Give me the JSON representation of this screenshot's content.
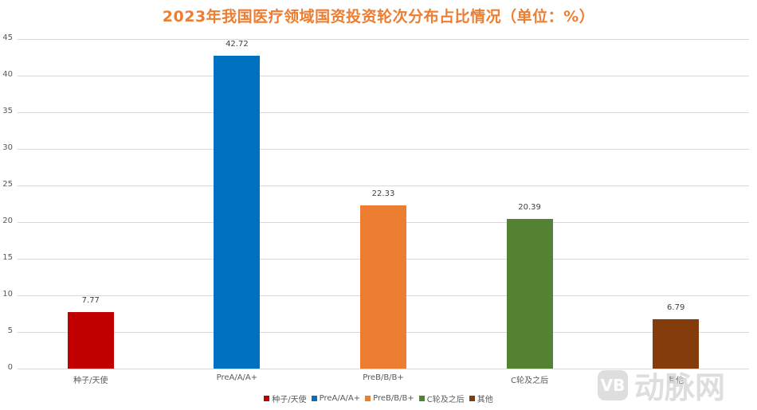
{
  "chart_data": {
    "type": "bar",
    "title": "2023年我国医疗领域国资投资轮次分布占比情况（单位：%）",
    "categories": [
      "种子/天使",
      "PreA/A/A+",
      "PreB/B/B+",
      "C轮及之后",
      "其他"
    ],
    "values": [
      7.77,
      42.72,
      22.33,
      20.39,
      6.79
    ],
    "value_labels": [
      "7.77",
      "42.72",
      "22.33",
      "20.39",
      "6.79"
    ],
    "colors": [
      "#C00000",
      "#0070C0",
      "#ED7D31",
      "#548235",
      "#843C0C"
    ],
    "xlabel": "",
    "ylabel": "",
    "ylim": [
      0,
      45
    ],
    "yticks": [
      "0",
      "5",
      "10",
      "15",
      "20",
      "25",
      "30",
      "35",
      "40",
      "45"
    ],
    "grid": true,
    "legend_position": "bottom",
    "legend": [
      "种子/天使",
      "PreA/A/A+",
      "PreB/B/B+",
      "C轮及之后",
      "其他"
    ]
  },
  "watermark": {
    "logo": "VB",
    "text": "动脉网"
  }
}
